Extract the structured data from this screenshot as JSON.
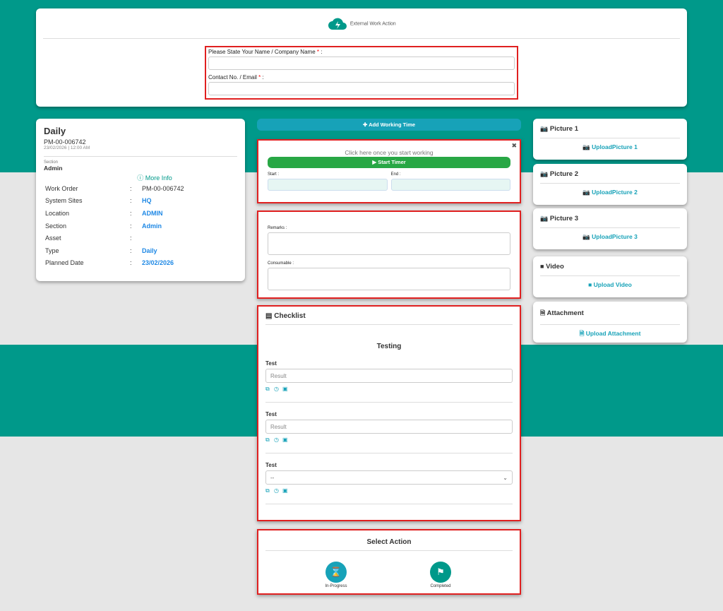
{
  "header": {
    "title": "External Work Action",
    "name_label": "Please State Your Name / Company Name",
    "contact_label": "Contact No. / Email",
    "required_mark": "*",
    "colon": ":"
  },
  "work": {
    "type": "Daily",
    "code": "PM-00-006742",
    "datetime": "23/02/2026 | 12:00 AM",
    "section_label": "Section",
    "section_value": "Admin",
    "more_info": "More Info",
    "details": [
      {
        "key": "Work Order",
        "value": "PM-00-006742",
        "link": false
      },
      {
        "key": "System Sites",
        "value": "HQ",
        "link": true
      },
      {
        "key": "Location",
        "value": "ADMIN",
        "link": true
      },
      {
        "key": "Section",
        "value": "Admin",
        "link": true
      },
      {
        "key": "Asset",
        "value": "",
        "link": true
      },
      {
        "key": "Type",
        "value": "Daily",
        "link": true
      },
      {
        "key": "Planned Date",
        "value": "23/02/2026",
        "link": true
      }
    ]
  },
  "timer": {
    "add_working_time": "Add Working Time",
    "hint": "Click here once you start working",
    "start_timer": "Start Timer",
    "start_label": "Start :",
    "end_label": "End :"
  },
  "notes": {
    "remarks_label": "Remarks :",
    "consumable_label": "Consumable :"
  },
  "checklist": {
    "title": "Checklist",
    "group": "Testing",
    "items": [
      {
        "label": "Test",
        "placeholder": "Result"
      },
      {
        "label": "Test",
        "placeholder": "Result"
      },
      {
        "label": "Test",
        "select_value": "--"
      }
    ]
  },
  "action": {
    "title": "Select Action",
    "in_progress": "In-Progress",
    "completed": "Completed"
  },
  "uploads": [
    {
      "title": "Picture 1",
      "button": "UploadPicture 1",
      "icon": "camera-icon"
    },
    {
      "title": "Picture 2",
      "button": "UploadPicture 2",
      "icon": "camera-icon"
    },
    {
      "title": "Picture 3",
      "button": "UploadPicture 3",
      "icon": "camera-icon"
    },
    {
      "title": "Video",
      "button": "Upload Video",
      "icon": "video-icon"
    },
    {
      "title": "Attachment",
      "button": "Upload Attachment",
      "icon": "file-icon"
    }
  ],
  "colors": {
    "teal": "#00998a",
    "info": "#17a2b8",
    "success": "#28a745",
    "link": "#1e88e5",
    "highlight": "#e02020"
  }
}
